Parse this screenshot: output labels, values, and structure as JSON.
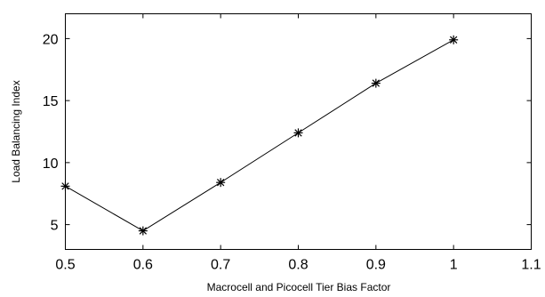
{
  "chart_data": {
    "type": "line",
    "xlabel": "Macrocell and Picocell Tier Bias  Factor",
    "ylabel": "Load Balancing Index",
    "xlim": [
      0.5,
      1.1
    ],
    "ylim": [
      3,
      22
    ],
    "xticks": [
      0.5,
      0.6,
      0.7,
      0.8,
      0.9,
      1.0,
      1.1
    ],
    "xtick_labels": [
      "0.5",
      "0.6",
      "0.7",
      "0.8",
      "0.9",
      "1",
      "1.1"
    ],
    "yticks": [
      5,
      10,
      15,
      20
    ],
    "ytick_labels": [
      "5",
      "10",
      "15",
      "20"
    ],
    "grid": false,
    "series": [
      {
        "x": [
          0.5,
          0.6,
          0.7,
          0.8,
          0.9,
          1.0
        ],
        "values": [
          8.1,
          4.5,
          8.4,
          12.4,
          16.4,
          19.9
        ],
        "marker": "asterisk",
        "color": "#000000"
      }
    ]
  }
}
